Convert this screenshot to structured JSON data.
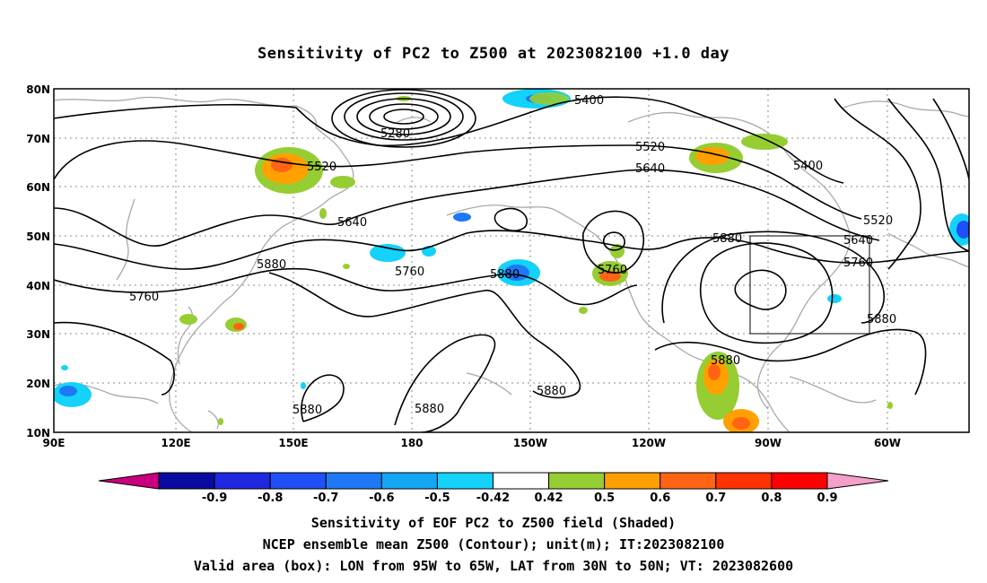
{
  "title": "Sensitivity of PC2 to Z500 at 2023082100 +1.0 day",
  "lat_labels": [
    "80N",
    "70N",
    "60N",
    "50N",
    "40N",
    "30N",
    "20N",
    "10N"
  ],
  "lon_labels": [
    "90E",
    "120E",
    "150E",
    "180",
    "150W",
    "120W",
    "90W",
    "60W"
  ],
  "contour_labels": {
    "c5400a": "5400",
    "c5280": "5280",
    "c5520a": "5520",
    "c5520b": "5520",
    "c5640a": "5640",
    "c5400b": "5400",
    "c5520c": "5520",
    "c5640b": "5640",
    "c5880a": "5880",
    "c5640c": "5640",
    "c5760a": "5760",
    "c5880b": "5880",
    "c5760b": "5760",
    "c5760c": "5760",
    "c5880c": "5880",
    "c5880d": "5880",
    "c5880e": "5880",
    "c5880f": "5880",
    "c5880g": "5880",
    "c5880h": "5880",
    "c5760d": "5760"
  },
  "colorbar": {
    "ticks": [
      "-0.9",
      "-0.8",
      "-0.7",
      "-0.6",
      "-0.5",
      "-0.42",
      "0.42",
      "0.5",
      "0.6",
      "0.7",
      "0.8",
      "0.9"
    ],
    "colors": [
      "#0a0aa0",
      "#1f28e0",
      "#1e50f5",
      "#1e78f5",
      "#14a5f5",
      "#14d2fa",
      "#ffffff",
      "#96cd32",
      "#ffa000",
      "#ff6414",
      "#ff3200",
      "#ff0000"
    ],
    "low_end_color": "#c8007d",
    "high_end_color": "#f5a0c8"
  },
  "captions": {
    "line1": "Sensitivity of EOF PC2 to Z500 field (Shaded)",
    "line2": "NCEP ensemble mean Z500 (Contour); unit(m); IT:2023082100",
    "line3": "Valid area (box): LON from 95W to 65W, LAT from 30N to 50N; VT: 2023082600"
  }
}
